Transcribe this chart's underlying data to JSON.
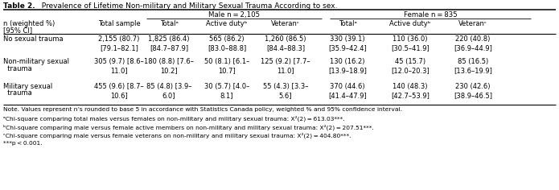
{
  "title_bold": "Table 2.",
  "title_rest": "  Prevalence of Lifetime Non-military and Military Sexual Trauma According to sex.",
  "group_headers": [
    {
      "label": "Male n = 2,105"
    },
    {
      "label": "Female n = 835"
    }
  ],
  "row_header_line1": "n (weighted %)",
  "row_header_line2": "[95% CI]",
  "col_total_sample": "Total sample",
  "sub_headers": [
    "Totalᵃ",
    "Active dutyᵇ",
    "Veteranᶜ",
    "Totalᵃ",
    "Active dutyᵇ",
    "Veteranᶜ"
  ],
  "rows": [
    {
      "label_line1": "No sexual trauma",
      "label_line2": "",
      "values": [
        "2,155 (80.7)\n[79.1–82.1]",
        "1,825 (86.4)\n[84.7–87.9]",
        "565 (86.2)\n[83.0–88.8]",
        "1,260 (86.5)\n[84.4–88.3]",
        "330 (39.1)\n[35.9–42.4]",
        "110 (36.0)\n[30.5–41.9]",
        "220 (40.8)\n[36.9–44.9]"
      ]
    },
    {
      "label_line1": "Non-military sexual",
      "label_line2": "  trauma",
      "values": [
        "305 (9.7) [8.6–\n11.0]",
        "180 (8.8) [7.6–\n10.2]",
        "50 (8.1) [6.1–\n10.7]",
        "125 (9.2) [7.7–\n11.0]",
        "130 (16.2)\n[13.9–18.9]",
        "45 (15.7)\n[12.0–20.3]",
        "85 (16.5)\n[13.6–19.9]"
      ]
    },
    {
      "label_line1": "Military sexual",
      "label_line2": "  trauma",
      "values": [
        "455 (9.6) [8.7–\n10.6]",
        "85 (4.8) [3.9–\n6.0]",
        "30 (5.7) [4.0–\n8.1]",
        "55 (4.3) [3.3–\n5.6]",
        "370 (44.6)\n[41.4–47.9]",
        "140 (48.3)\n[42.7–53.9]",
        "230 (42.6)\n[38.9–46.5]"
      ]
    }
  ],
  "footnotes": [
    "Note. Values represent n’s rounded to base 5 in accordance with Statistics Canada policy, weighted % and 95% confidence interval.",
    "ᵃChi-square comparing total males versus females on non-military and military sexual trauma: Χ²(2) = 613.03***.",
    "ᵇChi-square comparing male versus female active members on non-military and military sexual trauma: Χ²(2) = 207.51***.",
    "ᶜChi-square comparing male versus female veterans on non-military and military sexual trauma: Χ²(2) = 404.80***.",
    "***p < 0.001."
  ],
  "bg": "#ffffff",
  "fig_w": 6.95,
  "fig_h": 2.36,
  "dpi": 100
}
